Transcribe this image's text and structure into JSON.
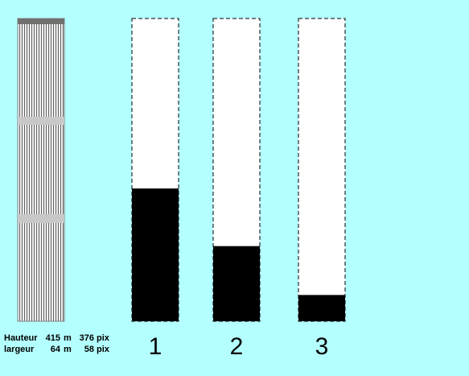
{
  "building": {
    "height": {
      "label": "Hauteur",
      "value": 415,
      "unit": "m",
      "pixels": 376,
      "pixel_unit": "pix"
    },
    "width": {
      "label": "largeur",
      "value": 64,
      "unit": "m",
      "pixels": 58,
      "pixel_unit": "pix"
    }
  },
  "columns": [
    {
      "label": "1",
      "fill": 182
    },
    {
      "label": "2",
      "fill": 103
    },
    {
      "label": "3",
      "fill": 36
    }
  ]
}
